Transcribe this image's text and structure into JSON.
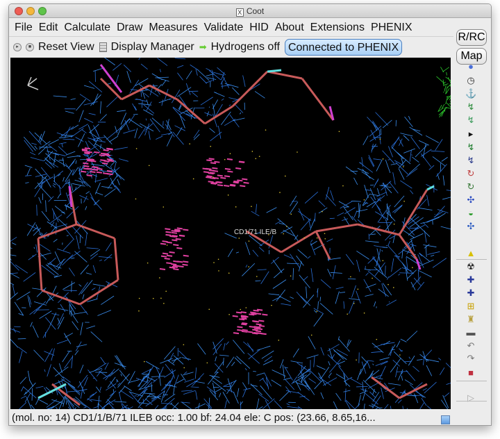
{
  "window": {
    "title": "Coot"
  },
  "menu": [
    "File",
    "Edit",
    "Calculate",
    "Draw",
    "Measures",
    "Validate",
    "HID",
    "About",
    "Extensions",
    "PHENIX"
  ],
  "toolbar": {
    "reset_view": "Reset View",
    "display_manager": "Display Manager",
    "hydrogens": "Hydrogens off",
    "phenix": "Connected to PHENIX"
  },
  "side": {
    "rrc": "R/RC",
    "map": "Map",
    "icons": [
      "rotate-translate-icon",
      "clock-icon",
      "anchor-icon",
      "rigid-body-fit-icon",
      "real-space-refine-icon",
      "more-arrow-icon",
      "regularize-icon",
      "rotate-residue-icon",
      "rotamer-icon",
      "torsion-icon",
      "flip-peptide-icon",
      "side-chain-180-icon",
      "mutate-icon",
      "add-atom-icon",
      "radiation-icon",
      "add-terminal-residue-icon",
      "add-residue-icon",
      "add-alt-conf-icon",
      "place-atom-icon",
      "delete-icon",
      "undo-icon",
      "redo-icon",
      "colour-flag-icon",
      "play-icon"
    ]
  },
  "canvas": {
    "atom_label": "CD1/71 ILE/B"
  },
  "status": "(mol. no: 14)  CD1/1/B/71 ILEB occ:  1.00 bf: 24.04 ele:  C pos: (23.66, 8.65,16..."
}
